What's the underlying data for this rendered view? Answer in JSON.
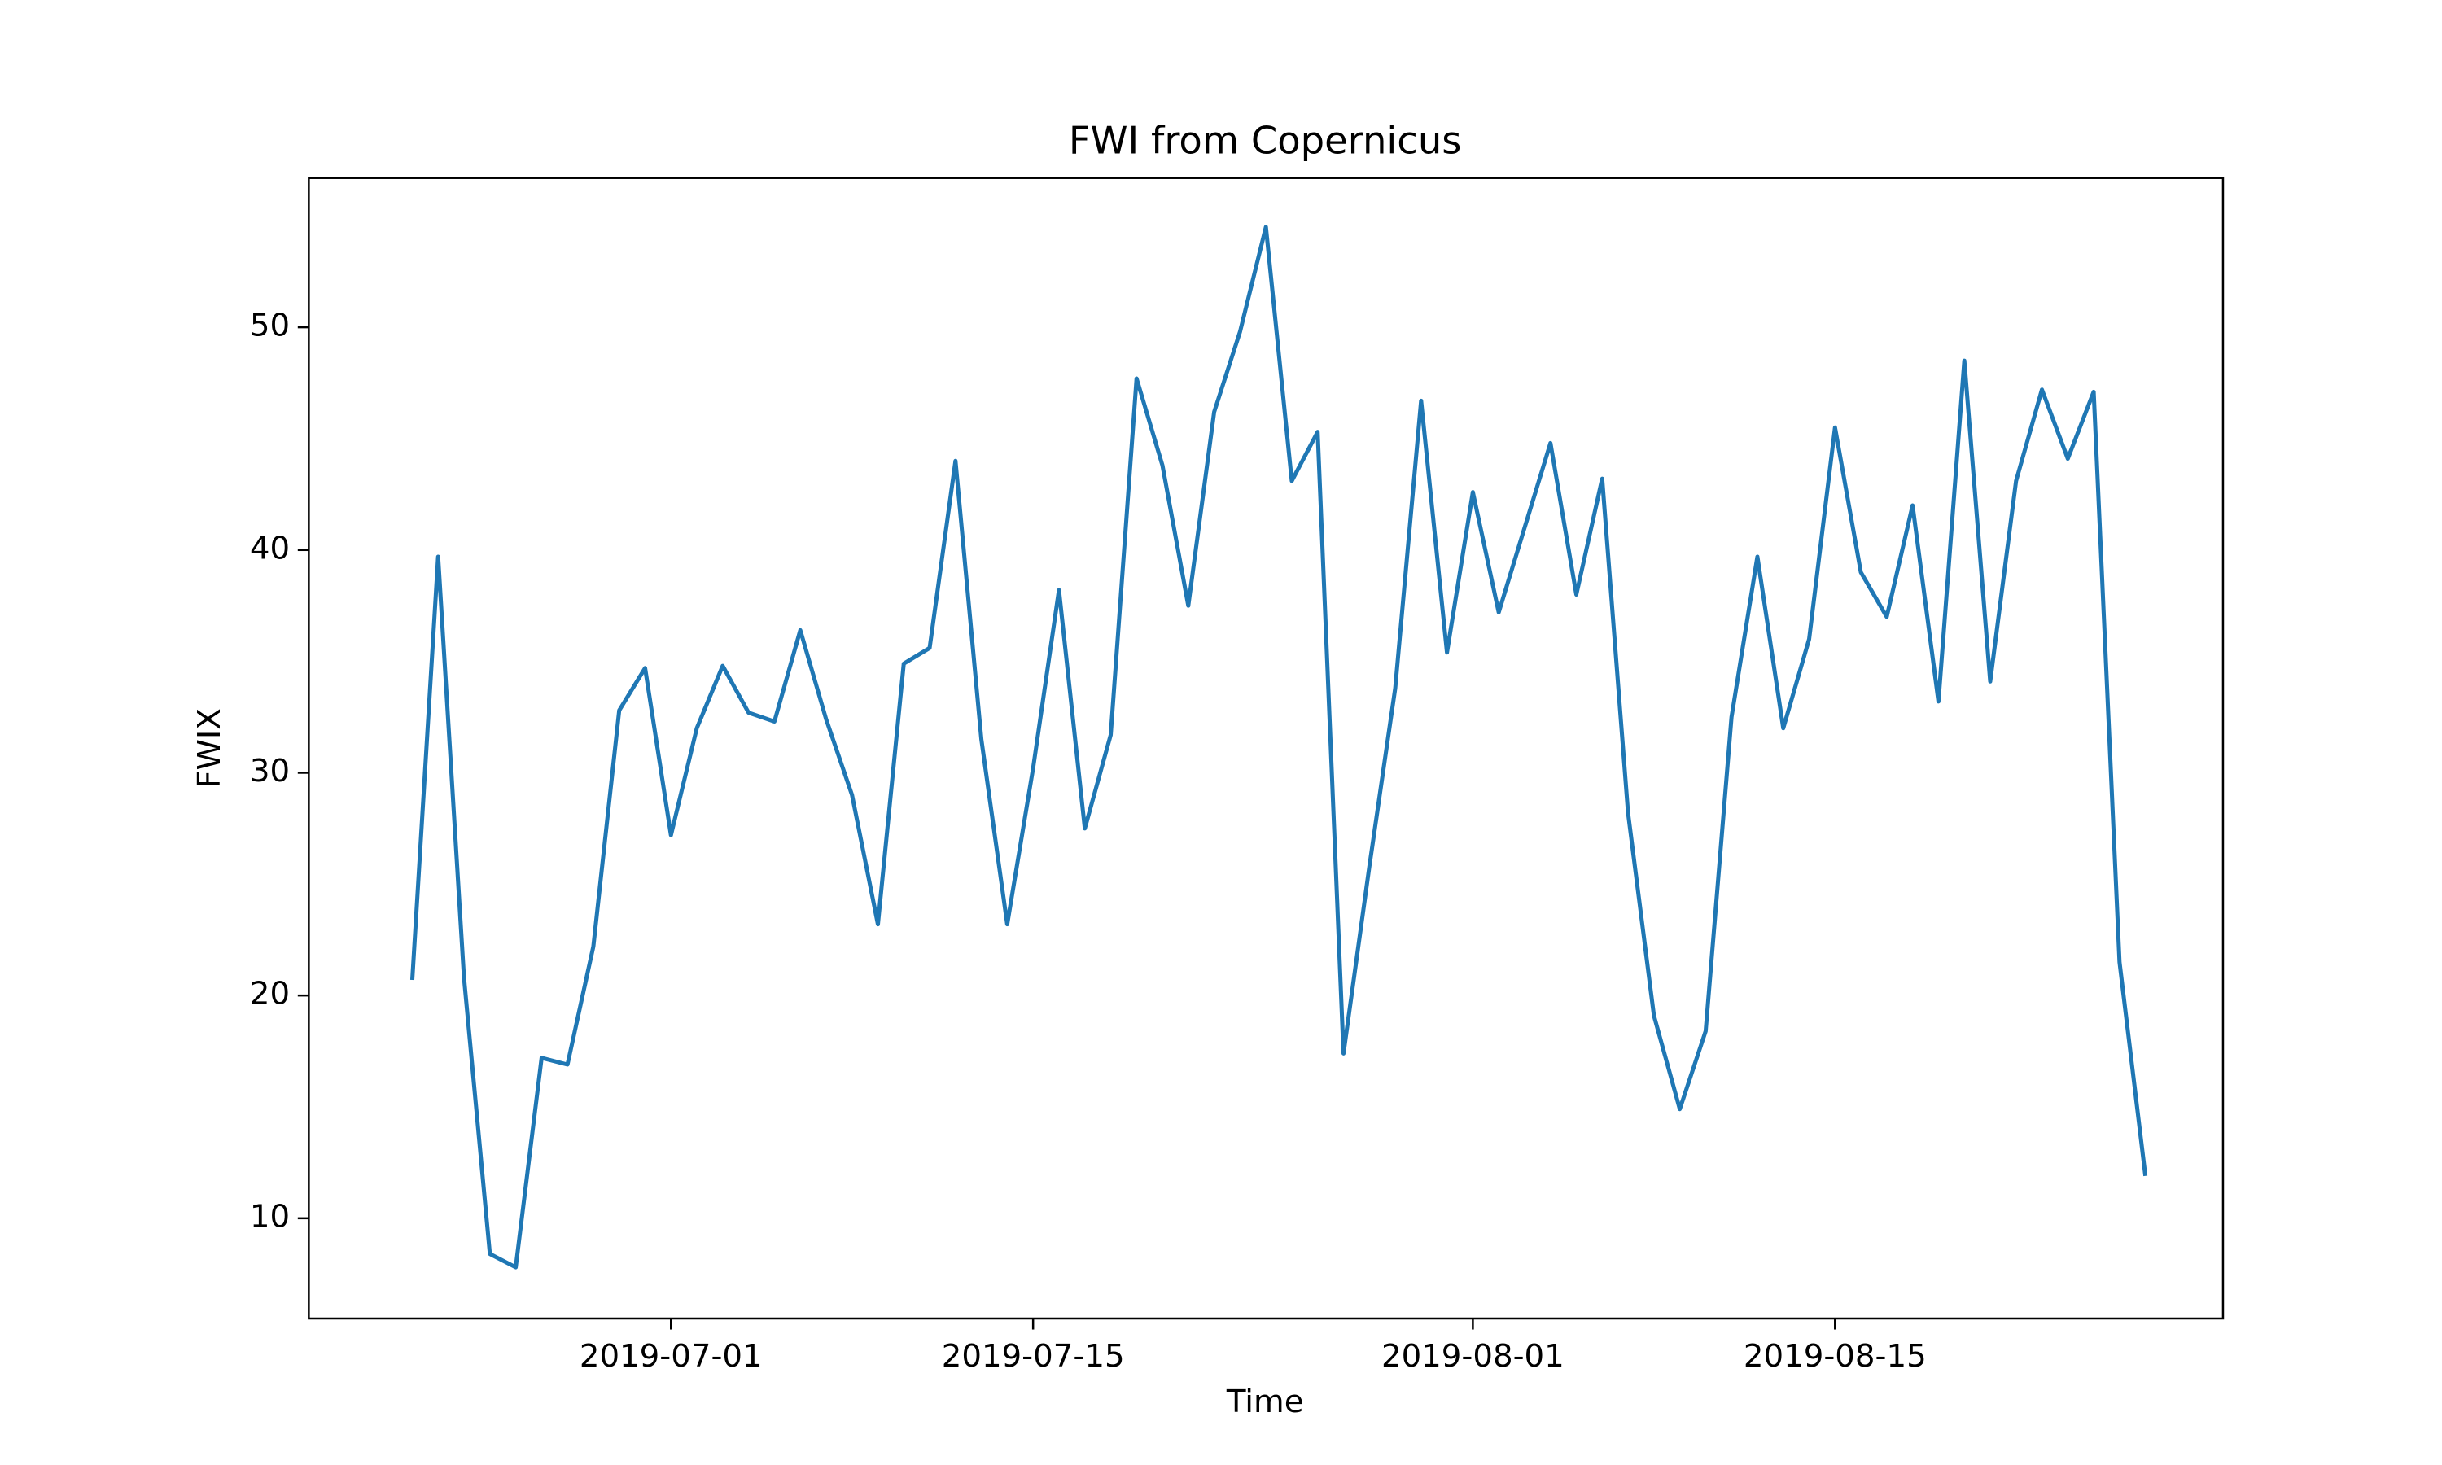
{
  "chart_data": {
    "type": "line",
    "title": "FWI from Copernicus",
    "x_label": "Time",
    "y_label": "FWIX",
    "x": [
      "2019-06-21",
      "2019-06-22",
      "2019-06-23",
      "2019-06-24",
      "2019-06-25",
      "2019-06-26",
      "2019-06-27",
      "2019-06-28",
      "2019-06-29",
      "2019-06-30",
      "2019-07-01",
      "2019-07-02",
      "2019-07-03",
      "2019-07-04",
      "2019-07-05",
      "2019-07-06",
      "2019-07-07",
      "2019-07-08",
      "2019-07-09",
      "2019-07-10",
      "2019-07-11",
      "2019-07-12",
      "2019-07-13",
      "2019-07-14",
      "2019-07-15",
      "2019-07-16",
      "2019-07-17",
      "2019-07-18",
      "2019-07-19",
      "2019-07-20",
      "2019-07-21",
      "2019-07-22",
      "2019-07-23",
      "2019-07-24",
      "2019-07-25",
      "2019-07-26",
      "2019-07-27",
      "2019-07-28",
      "2019-07-29",
      "2019-07-30",
      "2019-07-31",
      "2019-08-01",
      "2019-08-02",
      "2019-08-03",
      "2019-08-04",
      "2019-08-05",
      "2019-08-06",
      "2019-08-07",
      "2019-08-08",
      "2019-08-09",
      "2019-08-10",
      "2019-08-11",
      "2019-08-12",
      "2019-08-13",
      "2019-08-14",
      "2019-08-15",
      "2019-08-16",
      "2019-08-17",
      "2019-08-18",
      "2019-08-19",
      "2019-08-20",
      "2019-08-21",
      "2019-08-22",
      "2019-08-23",
      "2019-08-24",
      "2019-08-25",
      "2019-08-26",
      "2019-08-27"
    ],
    "series": [
      {
        "name": "FWIX",
        "color": "#1f77b4",
        "values": [
          20.7,
          39.7,
          20.8,
          8.4,
          7.8,
          17.2,
          16.9,
          22.2,
          32.8,
          34.7,
          27.2,
          32.0,
          34.8,
          32.7,
          32.3,
          36.4,
          32.4,
          29.0,
          23.2,
          34.9,
          35.6,
          44.0,
          31.5,
          23.2,
          30.2,
          38.2,
          27.5,
          31.7,
          47.7,
          43.8,
          37.5,
          46.2,
          49.8,
          54.5,
          43.1,
          45.3,
          17.4,
          25.8,
          33.8,
          46.7,
          35.4,
          42.6,
          37.2,
          41.0,
          44.8,
          38.0,
          43.2,
          28.2,
          19.1,
          14.9,
          18.4,
          32.5,
          39.7,
          32.0,
          36.0,
          45.5,
          39.0,
          37.0,
          42.0,
          33.2,
          48.5,
          34.1,
          43.1,
          47.2,
          44.1,
          47.1,
          21.5,
          11.9
        ]
      }
    ],
    "xlim": [
      "2019-06-17",
      "2019-08-30"
    ],
    "xticks": [
      "2019-07-01",
      "2019-07-15",
      "2019-08-01",
      "2019-08-15"
    ],
    "ylim": [
      5.5,
      56.7
    ],
    "yticks": [
      10,
      20,
      30,
      40,
      50
    ],
    "grid": false
  }
}
